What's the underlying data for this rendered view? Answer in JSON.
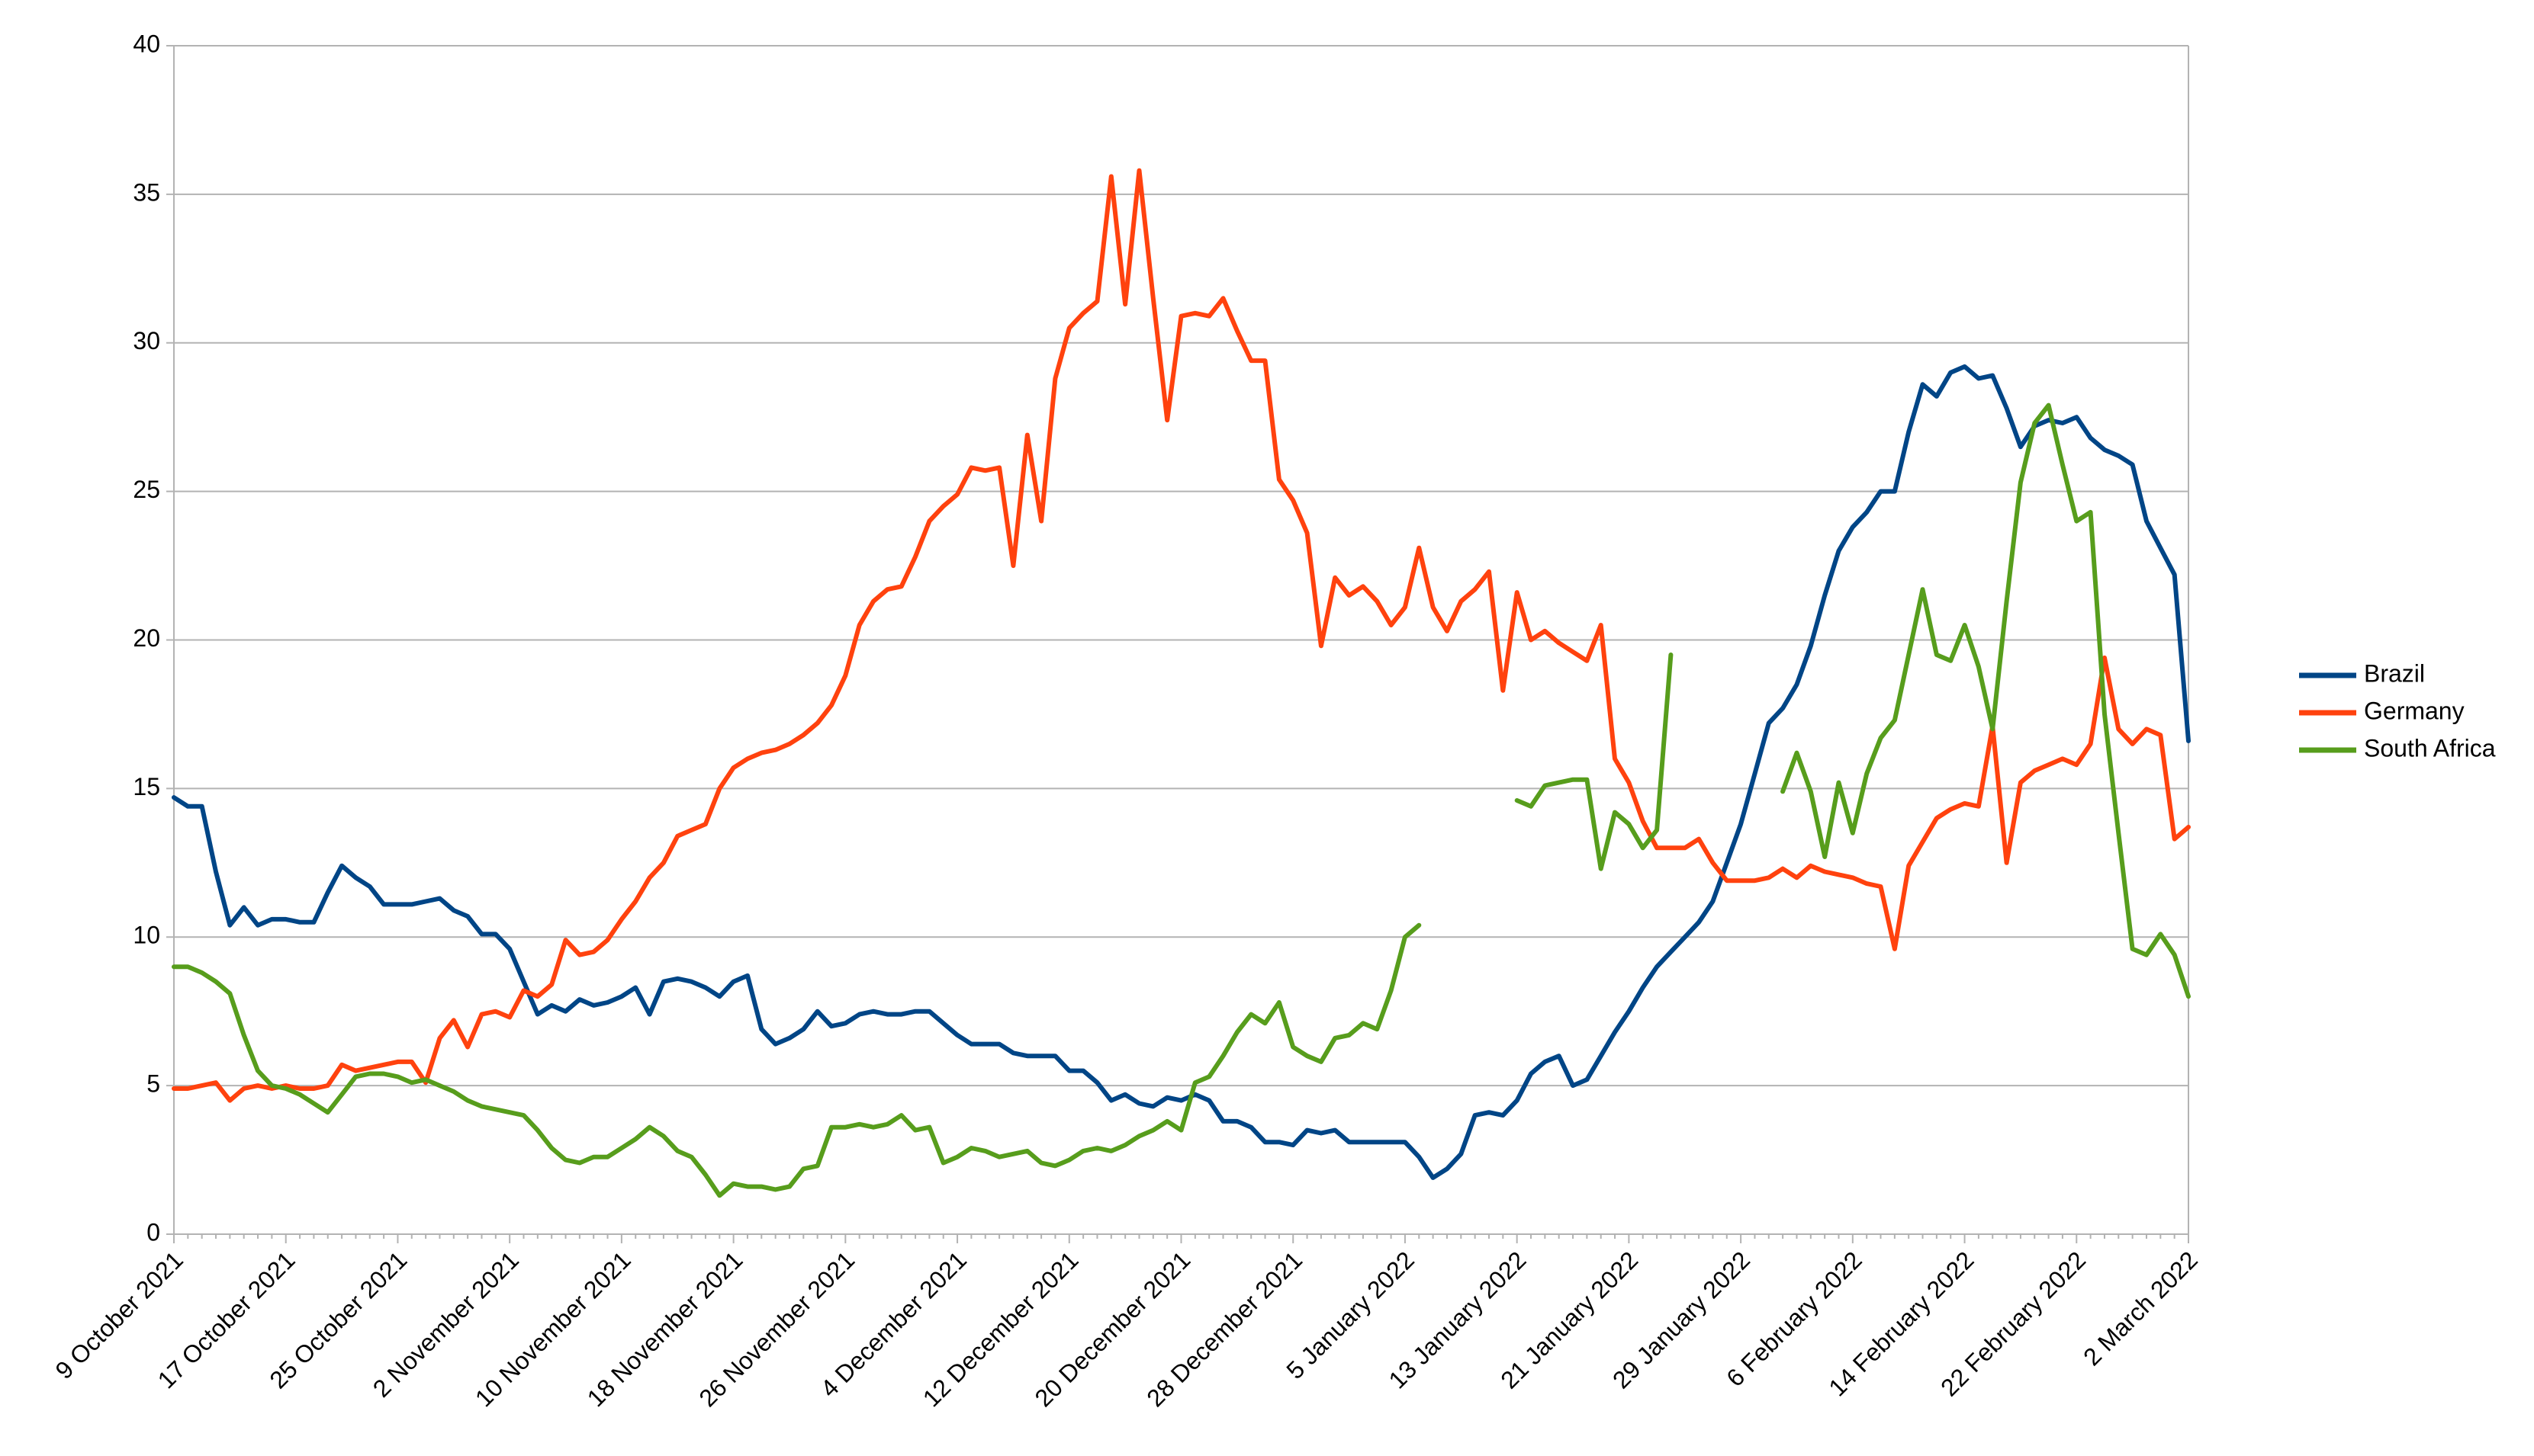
{
  "chart_data": {
    "type": "line",
    "categories": [
      "9 October 2021",
      null,
      null,
      null,
      null,
      null,
      null,
      null,
      "17 October 2021",
      null,
      null,
      null,
      null,
      null,
      null,
      null,
      "25 October 2021",
      null,
      null,
      null,
      null,
      null,
      null,
      null,
      "2 November 2021",
      null,
      null,
      null,
      null,
      null,
      null,
      null,
      "10 November 2021",
      null,
      null,
      null,
      null,
      null,
      null,
      null,
      "18 November 2021",
      null,
      null,
      null,
      null,
      null,
      null,
      null,
      "26 November 2021",
      null,
      null,
      null,
      null,
      null,
      null,
      null,
      "4 December 2021",
      null,
      null,
      null,
      null,
      null,
      null,
      null,
      "12 December 2021",
      null,
      null,
      null,
      null,
      null,
      null,
      null,
      "20 December 2021",
      null,
      null,
      null,
      null,
      null,
      null,
      null,
      "28 December 2021",
      null,
      null,
      null,
      null,
      null,
      null,
      null,
      "5 January 2022",
      null,
      null,
      null,
      null,
      null,
      null,
      null,
      "13 January 2022",
      null,
      null,
      null,
      null,
      null,
      null,
      null,
      "21 January 2022",
      null,
      null,
      null,
      null,
      null,
      null,
      null,
      "29 January 2022",
      null,
      null,
      null,
      null,
      null,
      null,
      null,
      "6 February 2022",
      null,
      null,
      null,
      null,
      null,
      null,
      null,
      "14 February 2022",
      null,
      null,
      null,
      null,
      null,
      null,
      null,
      "22 February 2022",
      null,
      null,
      null,
      null,
      null,
      null,
      null,
      "2 March 2022"
    ],
    "series": [
      {
        "name": "Brazil",
        "color": "#004586",
        "values": [
          14.7,
          14.4,
          14.4,
          12.2,
          10.4,
          11.0,
          10.4,
          10.6,
          10.6,
          10.5,
          10.5,
          11.5,
          12.4,
          12.0,
          11.7,
          11.1,
          11.1,
          11.1,
          11.2,
          11.3,
          10.9,
          10.7,
          10.1,
          10.1,
          9.6,
          8.5,
          7.4,
          7.7,
          7.5,
          7.9,
          7.7,
          7.8,
          8.0,
          8.3,
          7.4,
          8.5,
          8.6,
          8.5,
          8.3,
          8.0,
          8.5,
          8.7,
          6.9,
          6.4,
          6.6,
          6.9,
          7.5,
          7.0,
          7.1,
          7.4,
          7.5,
          7.4,
          7.4,
          7.5,
          7.5,
          7.1,
          6.7,
          6.4,
          6.4,
          6.4,
          6.1,
          6.0,
          6.0,
          6.0,
          5.5,
          5.5,
          5.1,
          4.5,
          4.7,
          4.4,
          4.3,
          4.6,
          4.5,
          4.7,
          4.5,
          3.8,
          3.8,
          3.6,
          3.1,
          3.1,
          3.0,
          3.5,
          3.4,
          3.5,
          3.1,
          3.1,
          3.1,
          3.1,
          3.1,
          2.6,
          1.9,
          2.2,
          2.7,
          4.0,
          4.1,
          4.0,
          4.5,
          5.4,
          5.8,
          6.0,
          5.0,
          5.2,
          6.0,
          6.8,
          7.5,
          8.3,
          9.0,
          9.5,
          10.0,
          10.5,
          11.2,
          12.5,
          13.8,
          15.5,
          17.2,
          17.7,
          18.5,
          19.8,
          21.5,
          23.0,
          23.8,
          24.3,
          25.0,
          25.0,
          27.0,
          28.6,
          28.2,
          29.0,
          29.2,
          28.8,
          28.9,
          27.8,
          26.5,
          27.2,
          27.4,
          27.3,
          27.5,
          26.8,
          26.4,
          26.2,
          25.9,
          24.0,
          23.1,
          22.2,
          16.6
        ]
      },
      {
        "name": "Germany",
        "color": "#ff420e",
        "values": [
          4.9,
          4.9,
          5.0,
          5.1,
          4.5,
          4.9,
          5.0,
          4.9,
          5.0,
          4.9,
          4.9,
          5.0,
          5.7,
          5.5,
          5.6,
          5.7,
          5.8,
          5.8,
          5.1,
          6.6,
          7.2,
          6.3,
          7.4,
          7.5,
          7.3,
          8.2,
          8.0,
          8.4,
          9.9,
          9.4,
          9.5,
          9.9,
          10.6,
          11.2,
          12.0,
          12.5,
          13.4,
          13.6,
          13.8,
          15.0,
          15.7,
          16.0,
          16.2,
          16.3,
          16.5,
          16.8,
          17.2,
          17.8,
          18.8,
          20.5,
          21.3,
          21.7,
          21.8,
          22.8,
          24.0,
          24.5,
          24.9,
          25.8,
          25.7,
          25.8,
          22.5,
          26.9,
          24.0,
          28.8,
          30.5,
          31.0,
          31.4,
          35.6,
          31.3,
          35.8,
          31.5,
          27.4,
          30.9,
          31.0,
          30.9,
          31.5,
          30.4,
          29.4,
          29.4,
          25.4,
          24.7,
          23.6,
          19.8,
          22.1,
          21.5,
          21.8,
          21.3,
          20.5,
          21.1,
          23.1,
          21.1,
          20.3,
          21.3,
          21.7,
          22.3,
          18.3,
          21.6,
          20.0,
          20.3,
          19.9,
          19.6,
          19.3,
          20.5,
          16.0,
          15.2,
          13.9,
          13.0,
          13.0,
          13.0,
          13.3,
          12.5,
          11.9,
          11.9,
          11.9,
          12.0,
          12.3,
          12.0,
          12.4,
          12.2,
          12.1,
          12.0,
          11.8,
          11.7,
          9.6,
          12.4,
          13.2,
          14.0,
          14.3,
          14.5,
          14.4,
          17.1,
          12.5,
          15.2,
          15.6,
          15.8,
          16.0,
          15.8,
          16.5,
          19.4,
          17.0,
          16.5,
          17.0,
          16.8,
          13.3,
          13.7
        ]
      },
      {
        "name": "South Africa",
        "color": "#579d1c",
        "values": [
          9.0,
          9.0,
          8.8,
          8.5,
          8.1,
          6.7,
          5.5,
          5.0,
          4.9,
          4.7,
          4.4,
          4.1,
          4.7,
          5.3,
          5.4,
          5.4,
          5.3,
          5.1,
          5.2,
          5.0,
          4.8,
          4.5,
          4.3,
          4.2,
          4.1,
          4.0,
          3.5,
          2.9,
          2.5,
          2.4,
          2.6,
          2.6,
          2.9,
          3.2,
          3.6,
          3.3,
          2.8,
          2.6,
          2.0,
          1.3,
          1.7,
          1.6,
          1.6,
          1.5,
          1.6,
          2.2,
          2.3,
          3.6,
          3.6,
          3.7,
          3.6,
          3.7,
          4.0,
          3.5,
          3.6,
          2.4,
          2.6,
          2.9,
          2.8,
          2.6,
          2.7,
          2.8,
          2.4,
          2.3,
          2.5,
          2.8,
          2.9,
          2.8,
          3.0,
          3.3,
          3.5,
          3.8,
          3.5,
          5.1,
          5.3,
          6.0,
          6.8,
          7.4,
          7.1,
          7.8,
          6.3,
          6.0,
          5.8,
          6.6,
          6.7,
          7.1,
          6.9,
          8.2,
          10.0,
          10.4,
          null,
          null,
          null,
          null,
          null,
          null,
          14.6,
          14.4,
          15.1,
          15.2,
          15.3,
          15.3,
          12.3,
          14.2,
          13.8,
          13.0,
          13.6,
          19.5,
          null,
          null,
          null,
          null,
          null,
          null,
          null,
          14.9,
          16.2,
          14.9,
          12.7,
          15.2,
          13.5,
          15.5,
          16.7,
          17.3,
          19.5,
          21.7,
          19.5,
          19.3,
          20.5,
          19.1,
          17.0,
          21.3,
          25.3,
          27.3,
          27.9,
          25.9,
          24.0,
          24.3,
          17.5,
          13.5,
          9.6,
          9.4,
          10.1,
          9.4,
          8.0
        ]
      }
    ],
    "ylim": [
      0,
      40
    ],
    "yticks": [
      0,
      5,
      10,
      15,
      20,
      25,
      30,
      35,
      40
    ],
    "grid": true,
    "legend": "right"
  }
}
